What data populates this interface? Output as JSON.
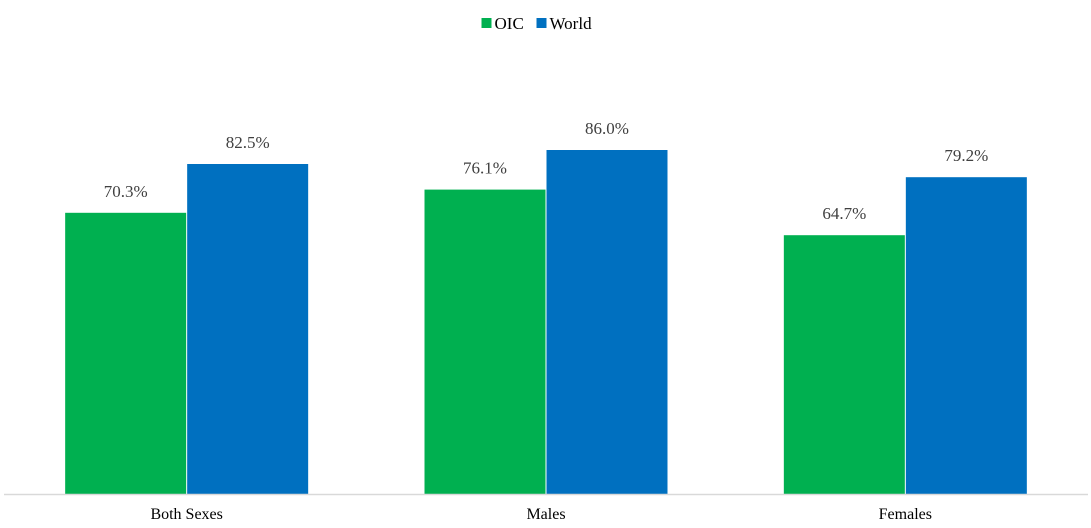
{
  "chart_data": {
    "type": "bar",
    "title": "",
    "xlabel": "",
    "ylabel": "",
    "categories": [
      "Both Sexes",
      "Males",
      "Females"
    ],
    "series": [
      {
        "name": "OIC",
        "color": "#00b050",
        "values": [
          70.3,
          76.1,
          64.7
        ],
        "labels": [
          "70.3%",
          "76.1%",
          "64.7%"
        ]
      },
      {
        "name": "World",
        "color": "#0070c0",
        "values": [
          82.5,
          86.0,
          79.2
        ],
        "labels": [
          "82.5%",
          "86.0%",
          "79.2%"
        ]
      }
    ],
    "ylim": [
      0,
      100
    ],
    "grid": false,
    "legend_position": "top-center"
  }
}
